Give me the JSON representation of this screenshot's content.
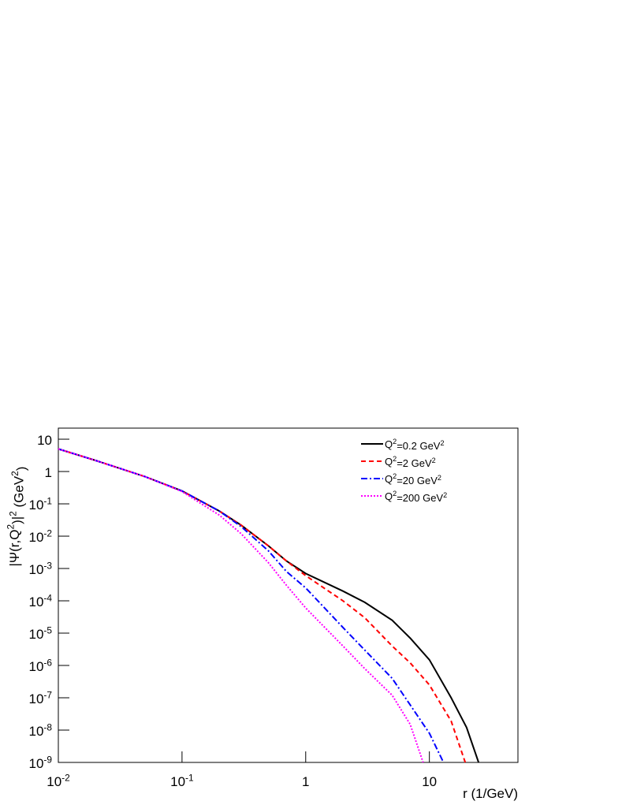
{
  "chart_data": {
    "type": "line",
    "x_label": "r (1/GeV)",
    "y_label": "|Ψ(r,Q^{2})|^{2} (GeV^{2})",
    "xlog": true,
    "ylog": true,
    "xlim": [
      0.01,
      52
    ],
    "ylim": [
      1e-09,
      22
    ],
    "xticks": [
      {
        "value": 0.01,
        "label": "10^{-2}"
      },
      {
        "value": 0.1,
        "label": "10^{-1}"
      },
      1,
      10
    ],
    "yticks": [
      {
        "value": 1e-09,
        "label": "10^{-9}"
      },
      {
        "value": 1e-08,
        "label": "10^{-8}"
      },
      {
        "value": 1e-07,
        "label": "10^{-7}"
      },
      {
        "value": 1e-06,
        "label": "10^{-6}"
      },
      {
        "value": 1e-05,
        "label": "10^{-5}"
      },
      {
        "value": 0.0001,
        "label": "10^{-4}"
      },
      {
        "value": 0.001,
        "label": "10^{-3}"
      },
      {
        "value": 0.01,
        "label": "10^{-2}"
      },
      {
        "value": 0.1,
        "label": "10^{-1}"
      },
      1,
      10
    ],
    "legend": "top-right",
    "series": [
      {
        "name": "Q^{2}=0.2 GeV^{2}",
        "color": "#000000",
        "dash": "solid",
        "x": [
          0.01,
          0.02,
          0.05,
          0.1,
          0.2,
          0.3,
          0.5,
          0.7,
          1,
          2,
          3,
          5,
          7,
          10,
          15,
          20,
          25
        ],
        "values": [
          5,
          2.2,
          0.7,
          0.25,
          0.06,
          0.022,
          0.005,
          0.0017,
          0.0007,
          0.0002,
          9e-05,
          2.5e-05,
          7e-06,
          1.5e-06,
          1e-07,
          1.2e-08,
          1e-09
        ]
      },
      {
        "name": "Q^{2}=2 GeV^{2}",
        "color": "#ff0000",
        "dash": "dashed",
        "x": [
          0.01,
          0.02,
          0.05,
          0.1,
          0.2,
          0.3,
          0.5,
          0.7,
          1,
          2,
          3,
          5,
          7,
          10,
          15,
          19.5
        ],
        "values": [
          5,
          2.2,
          0.7,
          0.25,
          0.06,
          0.022,
          0.005,
          0.0017,
          0.0006,
          0.0001,
          3e-05,
          4e-06,
          1.2e-06,
          2.5e-07,
          1.9e-08,
          1e-09
        ]
      },
      {
        "name": "Q^{2}=20 GeV^{2}",
        "color": "#0000ff",
        "dash": "dashdot",
        "x": [
          0.01,
          0.02,
          0.05,
          0.1,
          0.2,
          0.3,
          0.5,
          0.7,
          1,
          2,
          3,
          5,
          7,
          10,
          13
        ],
        "values": [
          5,
          2.2,
          0.7,
          0.25,
          0.06,
          0.02,
          0.0035,
          0.0008,
          0.00025,
          1.5e-05,
          3e-06,
          4e-07,
          6e-08,
          8e-09,
          1e-09
        ]
      },
      {
        "name": "Q^{2}=200 GeV^{2}",
        "color": "#ff00ff",
        "dash": "dotted",
        "x": [
          0.01,
          0.02,
          0.05,
          0.1,
          0.15,
          0.2,
          0.3,
          0.5,
          0.7,
          1,
          2,
          3,
          5,
          7,
          8.9
        ],
        "values": [
          5,
          2.2,
          0.7,
          0.24,
          0.09,
          0.045,
          0.012,
          0.0015,
          0.0003,
          6e-05,
          4e-06,
          8e-07,
          1.2e-07,
          1.5e-08,
          1e-09
        ]
      }
    ]
  }
}
